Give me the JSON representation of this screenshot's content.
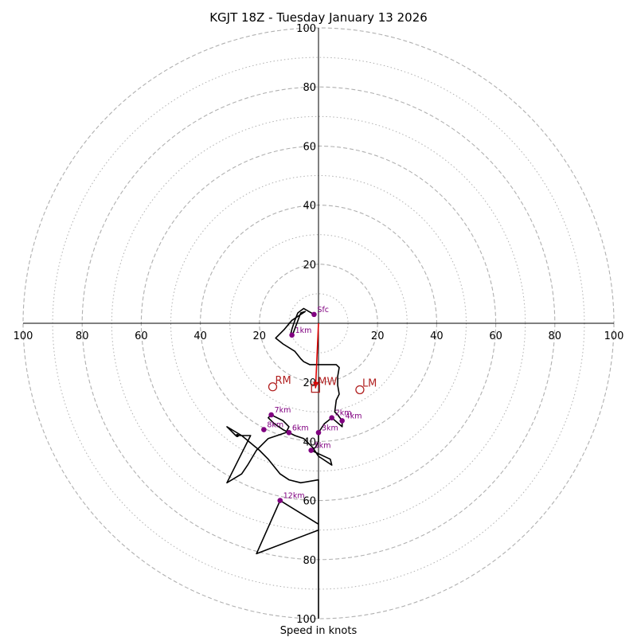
{
  "chart_data": {
    "type": "scatter",
    "title": "KGJT 18Z - Tuesday January 13 2026",
    "xlabel": "Speed in knots",
    "ylabel": "",
    "xlim": [
      -100,
      100
    ],
    "ylim": [
      -100,
      100
    ],
    "ring_major": [
      20,
      40,
      60,
      80,
      100
    ],
    "ring_minor": [
      10,
      30,
      50,
      70,
      90
    ],
    "tick_labels": {
      "top": [
        "20",
        "40",
        "60",
        "80",
        "100"
      ],
      "bottom": [
        "20",
        "40",
        "60",
        "80",
        "100"
      ],
      "left": [
        "20",
        "40",
        "60",
        "80",
        "100"
      ],
      "right": [
        "20",
        "40",
        "60",
        "80",
        "100"
      ]
    },
    "hodograph_trace": [
      [
        -1.5,
        3
      ],
      [
        -5,
        5
      ],
      [
        -7,
        3.5
      ],
      [
        -8,
        1
      ],
      [
        -9,
        -2
      ],
      [
        -9.5,
        -4
      ],
      [
        -9,
        -4.5
      ],
      [
        -6,
        3.5
      ],
      [
        -4.5,
        4
      ],
      [
        -9,
        1
      ],
      [
        -11.5,
        -2
      ],
      [
        -14.5,
        -5
      ],
      [
        -12,
        -7
      ],
      [
        -8,
        -9.5
      ],
      [
        -6,
        -12
      ],
      [
        -5,
        -13
      ],
      [
        -3,
        -14
      ],
      [
        6,
        -14
      ],
      [
        7,
        -15
      ],
      [
        6.5,
        -18
      ],
      [
        6.5,
        -21
      ],
      [
        7,
        -24
      ],
      [
        6,
        -26
      ],
      [
        5.5,
        -30
      ],
      [
        6.5,
        -31
      ],
      [
        8,
        -33
      ],
      [
        8,
        -35
      ],
      [
        4.5,
        -32
      ],
      [
        2,
        -34
      ],
      [
        0,
        -37
      ],
      [
        0,
        -38
      ],
      [
        0,
        -40
      ],
      [
        -1,
        -42
      ],
      [
        -2.5,
        -43
      ],
      [
        4,
        -46
      ],
      [
        4.5,
        -48
      ],
      [
        0,
        -45
      ],
      [
        -2,
        -42
      ],
      [
        -5,
        -39
      ],
      [
        -8,
        -38
      ],
      [
        -10,
        -37
      ],
      [
        -12,
        -36
      ],
      [
        -15,
        -34
      ],
      [
        -17,
        -32
      ],
      [
        -16,
        -31
      ],
      [
        -14,
        -32
      ],
      [
        -12,
        -33
      ],
      [
        -10,
        -35
      ],
      [
        -11,
        -37
      ],
      [
        -14,
        -38
      ],
      [
        -17,
        -39
      ],
      [
        -19,
        -41
      ],
      [
        -21,
        -43
      ],
      [
        -24,
        -48
      ],
      [
        -26,
        -51
      ],
      [
        -31,
        -54
      ],
      [
        -27,
        -46
      ],
      [
        -23,
        -38
      ],
      [
        -28,
        -38
      ],
      [
        -30,
        -36
      ],
      [
        -31,
        -35
      ],
      [
        -26,
        -38
      ],
      [
        -20,
        -43
      ],
      [
        -17,
        -46
      ],
      [
        -13,
        -51
      ],
      [
        -10,
        -53
      ],
      [
        -6,
        -54
      ],
      [
        0,
        -53
      ],
      [
        0,
        -70
      ],
      [
        -21,
        -78
      ],
      [
        -13,
        -60
      ],
      [
        0,
        -68
      ],
      [
        0,
        -100
      ]
    ],
    "height_markers": [
      {
        "label": "Sfc",
        "u": -1.5,
        "v": 3
      },
      {
        "label": "1km",
        "u": -9,
        "v": -4
      },
      {
        "label": "2km",
        "u": 4.5,
        "v": -32
      },
      {
        "label": "3km",
        "u": 0,
        "v": -37
      },
      {
        "label": "4km",
        "u": 8,
        "v": -33
      },
      {
        "label": "5km",
        "u": -2.5,
        "v": -43
      },
      {
        "label": "6km",
        "u": -10,
        "v": -37
      },
      {
        "label": "7km",
        "u": -16,
        "v": -31
      },
      {
        "label": "8km",
        "u": -18.5,
        "v": -36
      },
      {
        "label": "12km",
        "u": -13,
        "v": -60
      }
    ],
    "extra_points": [
      {
        "u": -27.5,
        "v": -38
      }
    ],
    "storm_motion": [
      {
        "label": "RM",
        "u": -15.5,
        "v": -21.5,
        "marker": "circle"
      },
      {
        "label": "LM",
        "u": 14,
        "v": -22.5,
        "marker": "circle"
      },
      {
        "label": "MW",
        "u": -1,
        "v": -22,
        "marker": "square"
      }
    ],
    "shear_vector": {
      "from": [
        0,
        0
      ],
      "to": [
        -1,
        -22
      ]
    },
    "colors": {
      "trace": "#000000",
      "height_points": "#800080",
      "storm_motion": "#b22222",
      "shear_vector": "#e00000",
      "grid": "#b0b0b0",
      "axes": "#000000"
    }
  }
}
